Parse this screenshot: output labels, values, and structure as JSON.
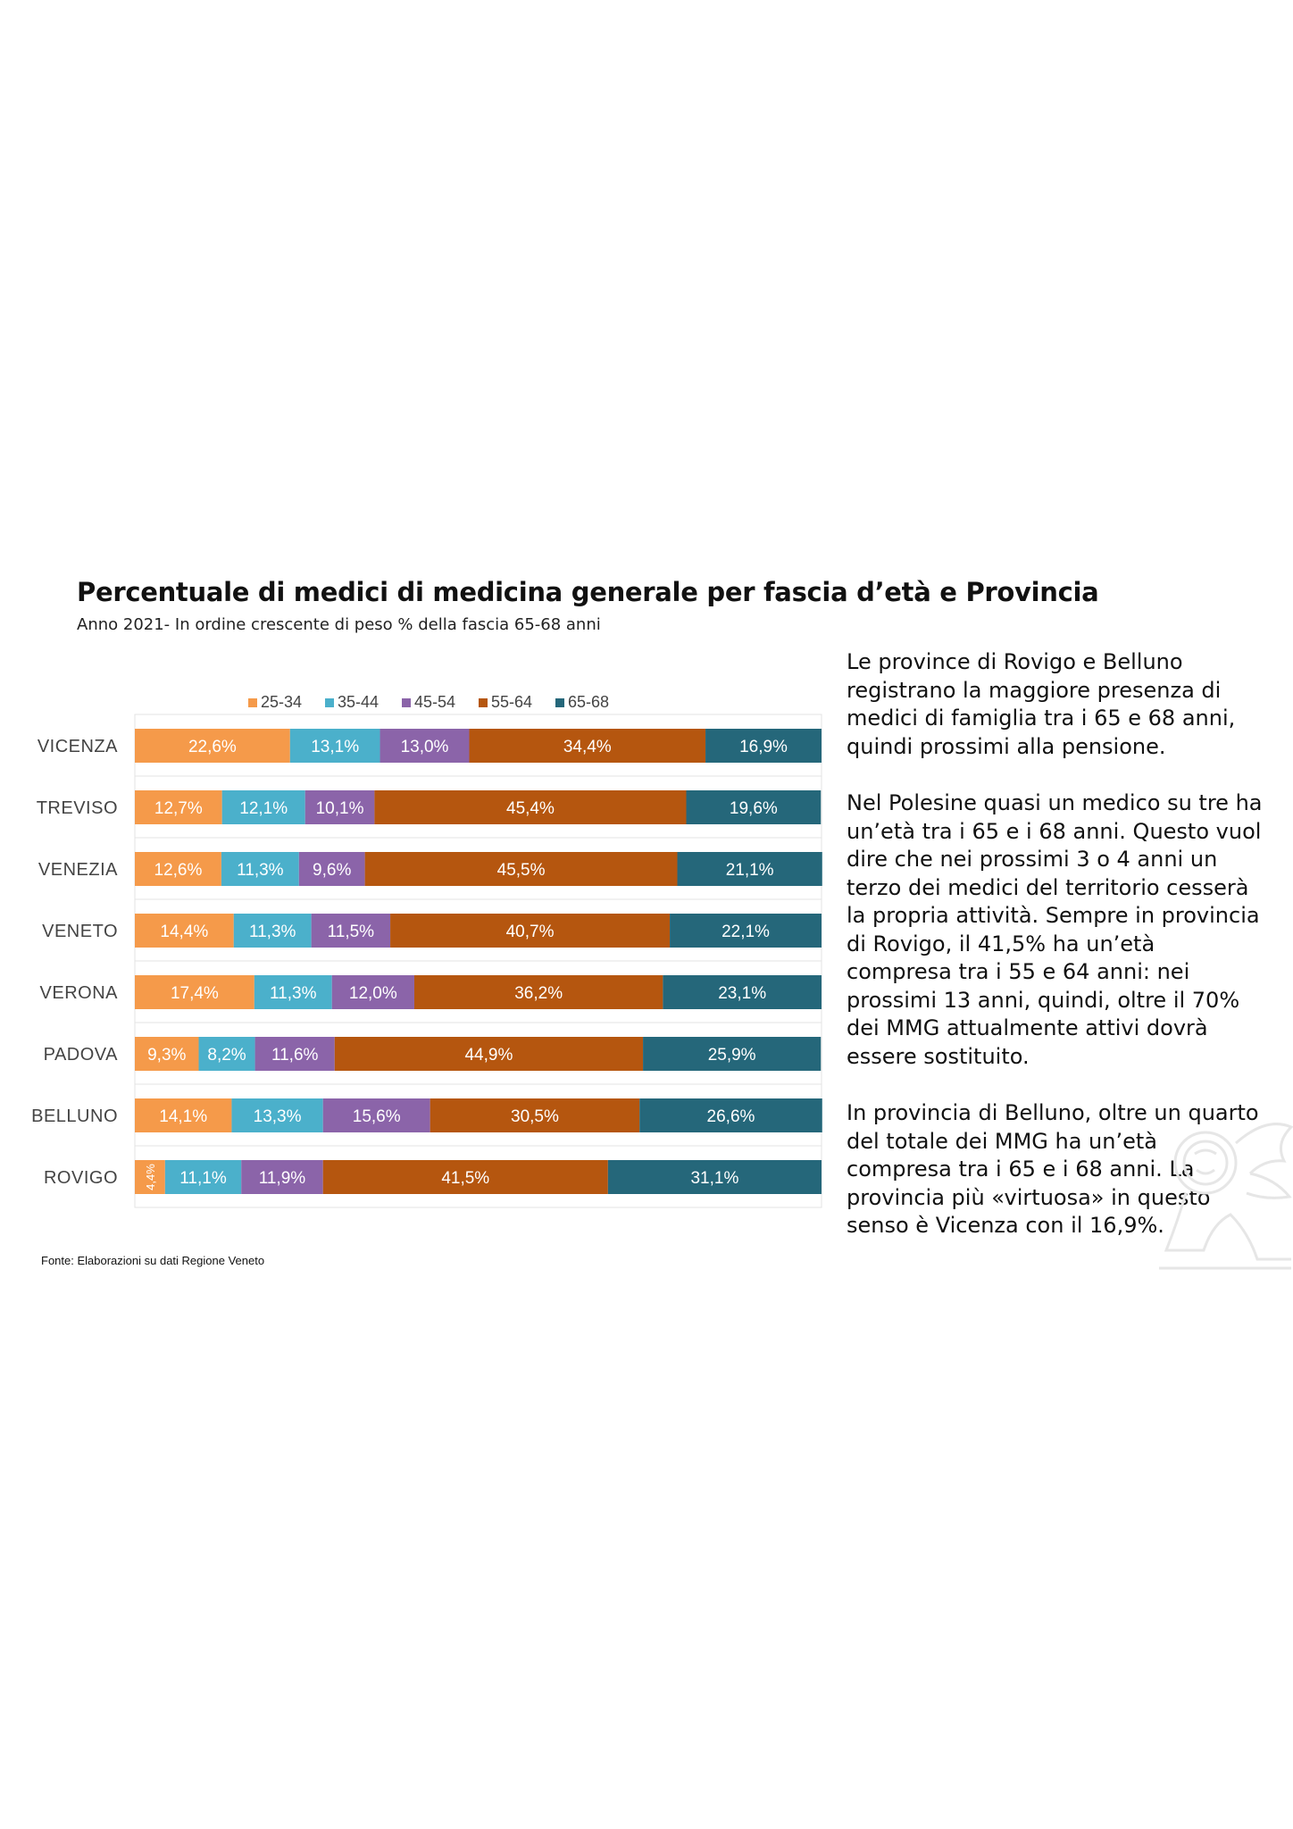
{
  "chart_data": {
    "type": "bar",
    "orientation": "horizontal",
    "stacked": true,
    "title": "Percentuale di medici di medicina generale per fascia d’età e Provincia",
    "subtitle": "Anno 2021- In ordine crescente di peso % della fascia 65-68 anni",
    "categories": [
      "VICENZA",
      "TREVISO",
      "VENEZIA",
      "VENETO",
      "VERONA",
      "PADOVA",
      "BELLUNO",
      "ROVIGO"
    ],
    "series": [
      {
        "name": "25-34",
        "color": "#f59a4a",
        "values": [
          22.6,
          12.7,
          12.6,
          14.4,
          17.4,
          9.3,
          14.1,
          4.4
        ],
        "labels": [
          "22,6%",
          "12,7%",
          "12,6%",
          "14,4%",
          "17,4%",
          "9,3%",
          "14,1%",
          "4,4%"
        ]
      },
      {
        "name": "35-44",
        "color": "#4bb0cb",
        "values": [
          13.1,
          12.1,
          11.3,
          11.3,
          11.3,
          8.2,
          13.3,
          11.1
        ],
        "labels": [
          "13,1%",
          "12,1%",
          "11,3%",
          "11,3%",
          "11,3%",
          "8,2%",
          "13,3%",
          "11,1%"
        ]
      },
      {
        "name": "45-54",
        "color": "#8b64a9",
        "values": [
          13.0,
          10.1,
          9.6,
          11.5,
          12.0,
          11.6,
          15.6,
          11.9
        ],
        "labels": [
          "13,0%",
          "10,1%",
          "9,6%",
          "11,5%",
          "12,0%",
          "11,6%",
          "15,6%",
          "11,9%"
        ]
      },
      {
        "name": "55-64",
        "color": "#b5560f",
        "values": [
          34.4,
          45.4,
          45.5,
          40.7,
          36.2,
          44.9,
          30.5,
          41.5
        ],
        "labels": [
          "34,4%",
          "45,4%",
          "45,5%",
          "40,7%",
          "36,2%",
          "44,9%",
          "30,5%",
          "41,5%"
        ]
      },
      {
        "name": "65-68",
        "color": "#25677a",
        "values": [
          16.9,
          19.6,
          21.1,
          22.1,
          23.1,
          25.9,
          26.6,
          31.1
        ],
        "labels": [
          "16,9%",
          "19,6%",
          "21,1%",
          "22,1%",
          "23,1%",
          "25,9%",
          "26,6%",
          "31,1%"
        ]
      }
    ],
    "xlim": [
      0,
      100
    ],
    "legend": "top",
    "grid": true
  },
  "side_text": {
    "p1": "Le province di Rovigo e Belluno registrano la maggiore presenza di medici di famiglia tra i 65 e 68 anni, quindi prossimi alla pensione.",
    "p2": "Nel Polesine quasi un medico su tre ha un’età tra i 65 e i 68 anni. Questo vuol dire che nei prossimi 3 o 4 anni un terzo dei medici del territorio cesserà la propria attività. Sempre in provincia di Rovigo, il 41,5% ha un’età compresa tra i 55 e 64 anni: nei prossimi 13 anni, quindi, oltre il 70% dei MMG attualmente attivi dovrà essere sostituito.",
    "p3": "In provincia di Belluno, oltre un quarto del totale dei MMG ha un’età compresa tra i 65 e i 68 anni. La provincia più «virtuosa» in questo senso è Vicenza con il 16,9%."
  },
  "source": "Fonte: Elaborazioni su dati Regione Veneto"
}
